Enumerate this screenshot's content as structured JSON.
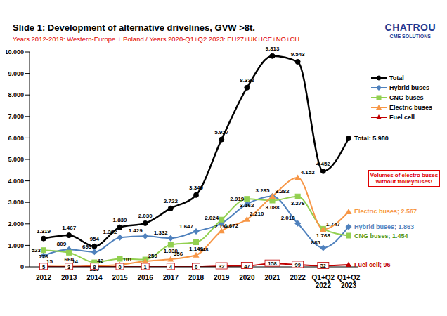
{
  "chart_data": {
    "type": "line",
    "title": "Slide 1: Development of alternative drivelines, GVW >8t.",
    "subtitle": "Years 2012-2019: Western-Europe + Poland / Years 2020-Q1+Q2 2023: EU27+UK+ICE+NO+CH",
    "logo": {
      "name": "CHATROU",
      "tagline": "CME SOLUTIONS"
    },
    "annotations": [
      "Volumes of electro buses without trolleybuses!"
    ],
    "categories": [
      "2012",
      "2013",
      "2014",
      "2015",
      "2016",
      "2017",
      "2018",
      "2019",
      "2020",
      "2021",
      "2022",
      "Q1+Q2 2022",
      "Q1+Q2 2023"
    ],
    "series": [
      {
        "name": "Total",
        "color": "#000000",
        "marker": "circle",
        "line_style": "solid",
        "values": [
          1319,
          1467,
          954,
          1839,
          2030,
          2722,
          3340,
          5927,
          8338,
          9813,
          9543,
          4452,
          5980
        ],
        "value_labels": [
          "1.319",
          "1.467",
          "954",
          "1.839",
          "2.030",
          "2.722",
          "3.340",
          "5.927",
          "8.338",
          "9.813",
          "9.543",
          "4.452",
          null
        ],
        "label": "Total: 5.980"
      },
      {
        "name": "Hybrid buses",
        "color": "#4f81bd",
        "marker": "diamond",
        "line_style": "solid",
        "values": [
          523,
          809,
          693,
          1362,
          1429,
          1332,
          1647,
          2024,
          2919,
          3285,
          2018,
          885,
          1863
        ],
        "value_labels": [
          "523",
          "809",
          "693",
          "1.362",
          "1.429",
          "1.332",
          "1.647",
          "2.024",
          "2.919",
          "3.285",
          "2.018",
          "885",
          null
        ],
        "label": "Hybrid buses; 1.863"
      },
      {
        "name": "CNG buses",
        "color": "#92d050",
        "marker": "square",
        "line_style": "solid",
        "values": [
          776,
          660,
          210,
          376,
          341,
          1030,
          1143,
          2199,
          3162,
          3088,
          3276,
          1768,
          1454
        ],
        "value_labels": [
          "776",
          "660",
          "210",
          "376",
          "341",
          "1.030",
          "1.143",
          "2.199",
          "3.162",
          "3.088",
          "3.276",
          "1.768",
          null
        ],
        "label": "CNG buses; 1.454"
      },
      {
        "name": "Electric buses",
        "color": "#f79646",
        "marker": "triangle",
        "line_style": "solid",
        "values": [
          15,
          14,
          42,
          101,
          259,
          356,
          548,
          1672,
          2210,
          3282,
          4152,
          1747,
          2567
        ],
        "value_labels": [
          "15",
          "14",
          "42",
          "101",
          "259",
          "356",
          "548",
          "1.672",
          "2.210",
          "3.282",
          "4.152",
          "1.747",
          null
        ],
        "label": "Electric buses; 2.567"
      },
      {
        "name": "Fuel cell",
        "color": "#c00000",
        "marker": "triangle",
        "line_style": "solid",
        "values": [
          5,
          3,
          8,
          0,
          1,
          4,
          0,
          32,
          47,
          158,
          99,
          52,
          96
        ],
        "value_labels": [
          "5",
          "3",
          "8",
          "0",
          "1",
          "4",
          "0",
          "32",
          "47",
          "158",
          "99",
          "52",
          null
        ],
        "label": "Fuel cell; 96"
      }
    ],
    "ylim": [
      0,
      10000
    ],
    "yticks": [
      0,
      {
        "value": 1000,
        "label": "1.000"
      },
      {
        "value": 2000,
        "label": "2.000"
      },
      {
        "value": 3000,
        "label": "3.000"
      },
      {
        "value": 4000,
        "label": "4.000"
      },
      {
        "value": 5000,
        "label": "5.000"
      },
      {
        "value": 6000,
        "label": "6.000"
      },
      {
        "value": 7000,
        "label": "7.000"
      },
      {
        "value": 8000,
        "label": "8.000"
      },
      {
        "value": 9000,
        "label": "9.000"
      },
      {
        "value": 10000,
        "label": "10.000"
      }
    ],
    "grid": false,
    "legend": "right",
    "data_labels": true
  }
}
